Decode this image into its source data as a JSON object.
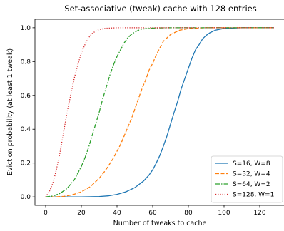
{
  "chart_data": {
    "type": "line",
    "title": "Set-associative (tweak) cache with 128 entries",
    "xlabel": "Number of tweaks to cache",
    "ylabel": "Eviction probability (at least 1 tweak)",
    "xlim": [
      -6,
      134
    ],
    "ylim": [
      -0.05,
      1.05
    ],
    "xticks": [
      0,
      20,
      40,
      60,
      80,
      100,
      120
    ],
    "yticks": [
      0.0,
      0.2,
      0.4,
      0.6,
      0.8,
      1.0
    ],
    "xtick_labels": [
      "0",
      "20",
      "40",
      "60",
      "80",
      "100",
      "120"
    ],
    "ytick_labels": [
      "0.0",
      "0.2",
      "0.4",
      "0.6",
      "0.8",
      "1.0"
    ],
    "grid": false,
    "legend_position": "lower-right",
    "series": [
      {
        "name": "S=16, W=8",
        "color": "#1f77b4",
        "dash": "solid",
        "x": [
          0,
          10,
          20,
          30,
          35,
          40,
          45,
          50,
          55,
          58,
          60,
          62,
          64,
          66,
          68,
          70,
          72,
          74,
          76,
          78,
          80,
          82,
          84,
          86,
          88,
          90,
          92,
          95,
          100,
          110,
          120,
          128
        ],
        "y": [
          0.0,
          0.0,
          0.0,
          0.002,
          0.006,
          0.015,
          0.03,
          0.055,
          0.095,
          0.13,
          0.16,
          0.2,
          0.245,
          0.3,
          0.36,
          0.43,
          0.5,
          0.565,
          0.64,
          0.7,
          0.76,
          0.82,
          0.87,
          0.9,
          0.935,
          0.955,
          0.97,
          0.985,
          0.996,
          1.0,
          1.0,
          1.0
        ]
      },
      {
        "name": "S=32, W=4",
        "color": "#ff7f0e",
        "dash": "dashed",
        "x": [
          0,
          5,
          10,
          15,
          20,
          25,
          28,
          30,
          33,
          35,
          38,
          40,
          42,
          44,
          46,
          48,
          50,
          52,
          54,
          56,
          58,
          60,
          62,
          64,
          66,
          68,
          70,
          75,
          80,
          90,
          100,
          128
        ],
        "y": [
          0.0,
          0.0,
          0.003,
          0.012,
          0.03,
          0.06,
          0.09,
          0.11,
          0.15,
          0.18,
          0.23,
          0.27,
          0.31,
          0.36,
          0.41,
          0.46,
          0.52,
          0.58,
          0.64,
          0.69,
          0.75,
          0.79,
          0.84,
          0.88,
          0.92,
          0.94,
          0.96,
          0.985,
          0.995,
          1.0,
          1.0,
          1.0
        ]
      },
      {
        "name": "S=64, W=2",
        "color": "#2ca02c",
        "dash": "dashdot",
        "x": [
          0,
          4,
          8,
          12,
          16,
          18,
          20,
          22,
          24,
          26,
          28,
          30,
          32,
          34,
          36,
          38,
          40,
          42,
          44,
          46,
          48,
          50,
          52,
          55,
          60,
          70,
          80,
          100,
          128
        ],
        "y": [
          0.0,
          0.005,
          0.02,
          0.05,
          0.1,
          0.14,
          0.18,
          0.23,
          0.29,
          0.36,
          0.43,
          0.5,
          0.58,
          0.65,
          0.72,
          0.78,
          0.83,
          0.87,
          0.91,
          0.94,
          0.96,
          0.975,
          0.985,
          0.993,
          0.998,
          1.0,
          1.0,
          1.0,
          1.0
        ]
      },
      {
        "name": "S=128, W=1",
        "color": "#d62728",
        "dash": "dotted",
        "x": [
          0,
          2,
          4,
          6,
          8,
          10,
          12,
          14,
          16,
          18,
          20,
          22,
          24,
          26,
          28,
          30,
          34,
          40,
          50,
          60,
          80,
          128
        ],
        "y": [
          0.0,
          0.03,
          0.08,
          0.16,
          0.26,
          0.38,
          0.5,
          0.6,
          0.7,
          0.78,
          0.85,
          0.9,
          0.94,
          0.965,
          0.98,
          0.99,
          0.997,
          1.0,
          1.0,
          1.0,
          1.0,
          1.0
        ]
      }
    ]
  }
}
